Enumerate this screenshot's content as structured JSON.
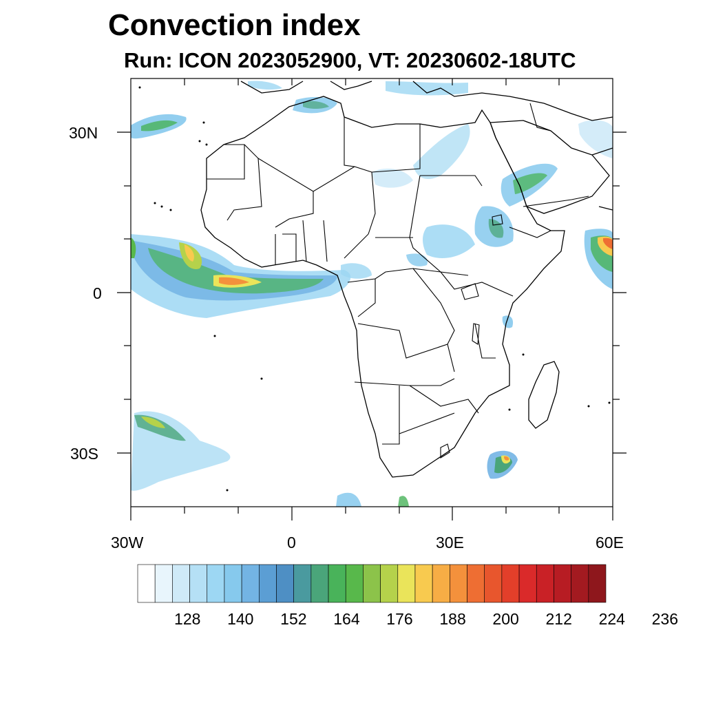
{
  "header": {
    "title": "Convection index",
    "subtitle": "Run: ICON 2023052900,  VT: 20230602-18UTC"
  },
  "map": {
    "projection": "cylindrical equidistant",
    "lon_range": [
      -30,
      60
    ],
    "lat_range": [
      -40,
      40
    ],
    "lat_labels": [
      "30N",
      "0",
      "30S"
    ],
    "lon_labels": [
      "30W",
      "0",
      "30E",
      "60E"
    ],
    "features": [
      "coastlines",
      "country borders"
    ]
  },
  "colorbar": {
    "tick_labels": [
      "128",
      "140",
      "152",
      "164",
      "176",
      "188",
      "200",
      "212",
      "224",
      "236"
    ],
    "colors": [
      "#ffffff",
      "#e8f5fc",
      "#cfeaf8",
      "#b5e0f5",
      "#9dd7f3",
      "#86c9ed",
      "#73b4e4",
      "#5b9ed4",
      "#4e8fc4",
      "#4a9a9f",
      "#4aa57a",
      "#49b35a",
      "#58b84b",
      "#8cc34a",
      "#b5d24b",
      "#eae45a",
      "#f8ca4f",
      "#f7ad45",
      "#f4913c",
      "#ee6e33",
      "#e8562d",
      "#e33f2a",
      "#da2a2a",
      "#c92126",
      "#b71c23",
      "#a31a20",
      "#8e171c"
    ]
  }
}
